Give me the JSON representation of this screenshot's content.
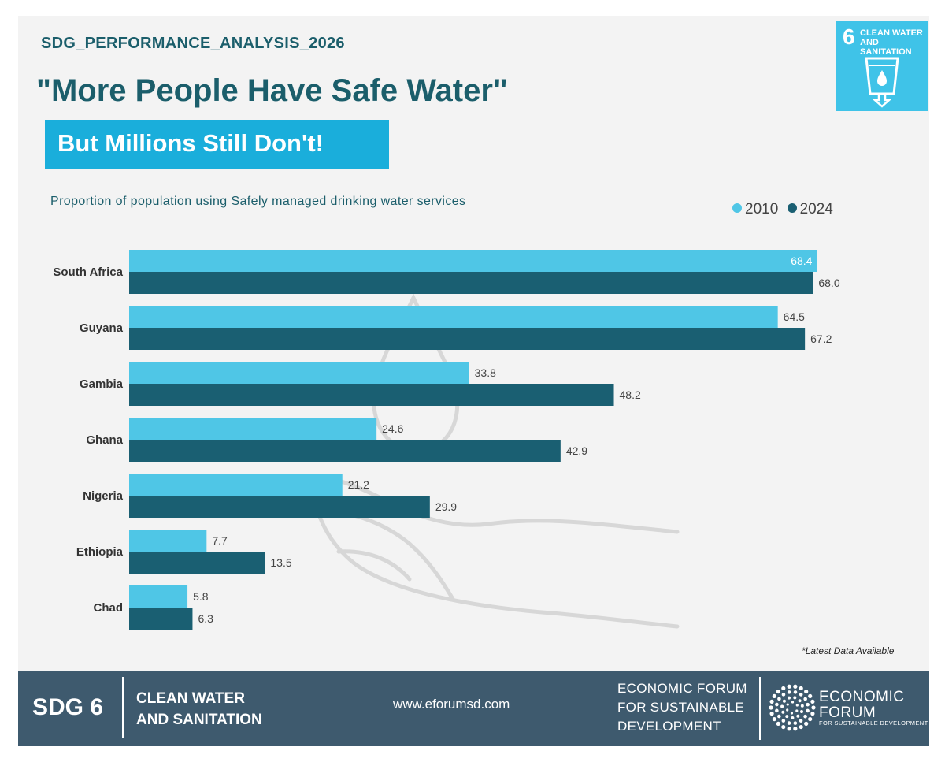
{
  "header": {
    "supertitle": "SDG_PERFORMANCE_ANALYSIS_2026",
    "headline": "\"More People Have Safe Water\"",
    "banner": "But Millions Still Don't!"
  },
  "sdg_tile": {
    "number": "6",
    "label": "CLEAN WATER AND SANITATION",
    "color": "#3fc3e8"
  },
  "chart_data": {
    "type": "bar",
    "orientation": "horizontal",
    "title": "Proportion of population using Safely managed drinking water services",
    "categories": [
      "South Africa",
      "Guyana",
      "Gambia",
      "Ghana",
      "Nigeria",
      "Ethiopia",
      "Chad"
    ],
    "series": [
      {
        "name": "2010",
        "color": "#4fc6e6",
        "values": [
          68.4,
          64.5,
          33.8,
          24.6,
          21.2,
          7.7,
          5.8
        ]
      },
      {
        "name": "2024",
        "color": "#1a5f72",
        "values": [
          68.0,
          67.2,
          48.2,
          42.9,
          29.9,
          13.5,
          6.3
        ]
      }
    ],
    "xlim": [
      0,
      78
    ],
    "grid": false,
    "legend": "top-right",
    "footnote": "*Latest Data Available"
  },
  "footer": {
    "sdg": "SDG 6",
    "goal_line1": "CLEAN WATER",
    "goal_line2": "AND SANITATION",
    "url": "www.eforumsd.com",
    "org_line1": "ECONOMIC FORUM",
    "org_line2": "FOR SUSTAINABLE",
    "org_line3": "DEVELOPMENT",
    "logo_line1": "ECONOMIC",
    "logo_line2": "FORUM",
    "logo_sub": "FOR SUSTAINABLE DEVELOPMENT"
  }
}
